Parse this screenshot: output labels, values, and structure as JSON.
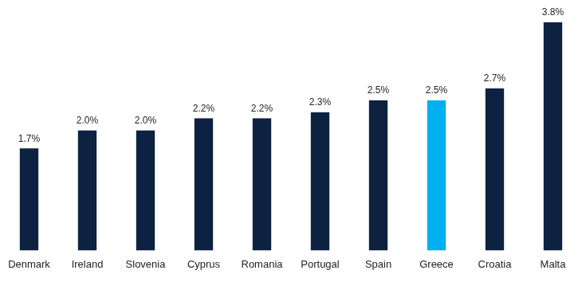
{
  "chart_data": {
    "type": "bar",
    "categories": [
      "Denmark",
      "Ireland",
      "Slovenia",
      "Cyprus",
      "Romania",
      "Portugal",
      "Spain",
      "Greece",
      "Croatia",
      "Malta"
    ],
    "values": [
      1.7,
      2.0,
      2.0,
      2.2,
      2.2,
      2.3,
      2.5,
      2.5,
      2.7,
      3.8
    ],
    "value_labels": [
      "1.7%",
      "2.0%",
      "2.0%",
      "2.2%",
      "2.2%",
      "2.3%",
      "2.5%",
      "2.5%",
      "2.7%",
      "3.8%"
    ],
    "colors": [
      "#0d2240",
      "#0d2240",
      "#0d2240",
      "#0d2240",
      "#0d2240",
      "#0d2240",
      "#0d2240",
      "#00b0f0",
      "#0d2240",
      "#0d2240"
    ],
    "ylim": [
      0,
      3.8
    ],
    "grid": false,
    "data_labels": true,
    "tick_labels": "x"
  }
}
